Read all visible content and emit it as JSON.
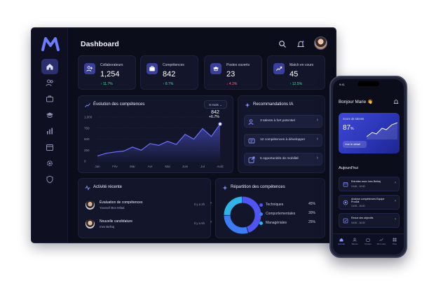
{
  "desktop": {
    "title": "Dashboard",
    "sidebar": [
      "home-icon",
      "users-icon",
      "briefcase-icon",
      "graduation-icon",
      "bar-chart-icon",
      "calendar-icon",
      "gear-icon",
      "shield-icon"
    ],
    "stats": [
      {
        "label": "Collaborateurs",
        "value": "1,254",
        "delta": "↑ 11.7%",
        "trend": "up",
        "icon": "users-icon"
      },
      {
        "label": "Compétences",
        "value": "842",
        "delta": "↑ 8.7%",
        "trend": "up",
        "icon": "briefcase-icon"
      },
      {
        "label": "Postes ouverts",
        "value": "23",
        "delta": "↓ 4.3%",
        "trend": "down",
        "icon": "graduation-icon"
      },
      {
        "label": "Match en cours",
        "value": "45",
        "delta": "↑ 12.5%",
        "trend": "up",
        "icon": "trend-icon"
      }
    ],
    "evolution": {
      "title": "Évolution des compétences",
      "period": "6 mois",
      "tooltip_value": "842",
      "tooltip_delta": "+6.7%"
    },
    "recommendations": {
      "title": "Recommandations IA",
      "items": [
        "3 talents à fort potentiel",
        "12 compétences à développer",
        "5 opportunités de mobilité"
      ]
    },
    "activity": {
      "title": "Activité récente",
      "items": [
        {
          "title": "Évaluation de compétences",
          "subtitle": "Youssef Ben Milad",
          "time": "Il y a 2h"
        },
        {
          "title": "Nouvelle candidature",
          "subtitle": "Ines Belhaj",
          "time": "Il y a 5h"
        }
      ]
    },
    "distribution": {
      "title": "Répartition des compétences",
      "items": [
        {
          "label": "Techniques",
          "pct": "45%",
          "color": "#4f55f0"
        },
        {
          "label": "Comportementales",
          "pct": "30%",
          "color": "#3d7cf2"
        },
        {
          "label": "Managériales",
          "pct": "25%",
          "color": "#31b3e8"
        }
      ]
    }
  },
  "chart_data": [
    {
      "type": "area",
      "title": "Évolution des compétences",
      "categories": [
        "Jan",
        "Fév",
        "Mar",
        "Avr",
        "Mai",
        "Juin",
        "Jul",
        "Août"
      ],
      "x": [
        0,
        0.5,
        1,
        1.5,
        2,
        2.5,
        3,
        3.5,
        4,
        4.5,
        5,
        5.5,
        6,
        6.5,
        7
      ],
      "values": [
        120,
        180,
        210,
        230,
        320,
        250,
        400,
        360,
        450,
        380,
        610,
        500,
        740,
        560,
        842
      ],
      "ylim": [
        0,
        1000
      ],
      "yticks": [
        "1,000",
        "750",
        "500",
        "250",
        "0"
      ],
      "grid": true
    },
    {
      "type": "pie",
      "categories": [
        "Techniques",
        "Comportementales",
        "Managériales"
      ],
      "values": [
        45,
        30,
        25
      ]
    }
  ],
  "phone": {
    "time": "9:41",
    "greeting": "Bonjour Marie 👋",
    "hero": {
      "label": "Score de talents",
      "value": "87",
      "unit": "%",
      "button": "Voir le détail"
    },
    "section": "Aujourd'hui",
    "tasks": [
      {
        "title": "Entretien avec Ines Belhaj",
        "time": "10:00 - 10:30",
        "icon": "calendar-icon"
      },
      {
        "title": "Analyse compétences Equipe Produit",
        "time": "14:00 - 15:00",
        "icon": "target-icon"
      },
      {
        "title": "Revue des objectifs",
        "time": "16:00 - 16:30",
        "icon": "check-icon"
      }
    ],
    "tabs": [
      "Accueil",
      "Talents",
      "Postes",
      "Mon suivi",
      "Plus"
    ]
  }
}
